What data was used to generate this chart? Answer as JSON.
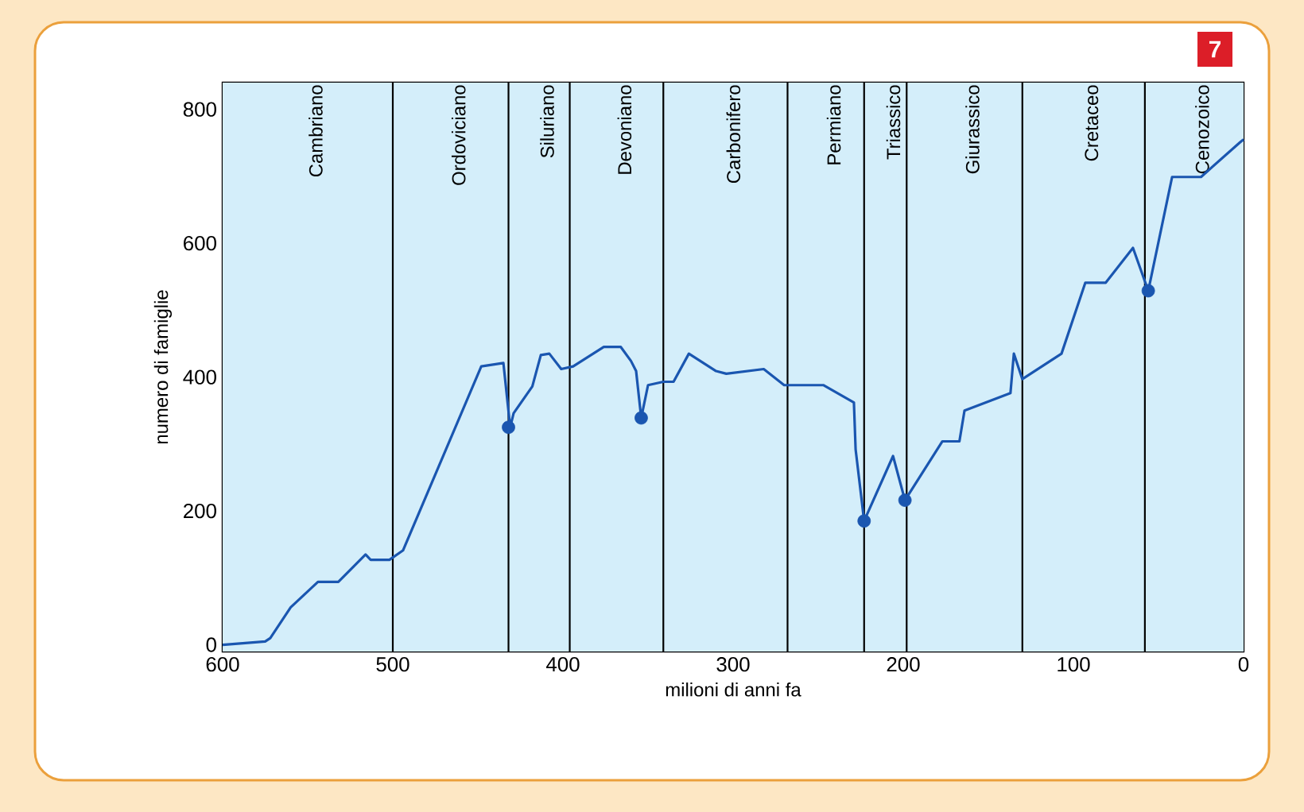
{
  "chart_data": {
    "type": "line",
    "xlabel": "milioni di anni fa",
    "ylabel": "numero di famiglie",
    "annotations": [
      "7"
    ],
    "xlim": [
      600,
      0
    ],
    "ylim": [
      -10,
      840
    ],
    "xticks": [
      600,
      500,
      400,
      300,
      200,
      100,
      0
    ],
    "yticks": [
      0,
      200,
      400,
      600,
      800
    ],
    "series": [
      {
        "color": "#1a56b0",
        "x": [
          600,
          575,
          572,
          560,
          544,
          532,
          516,
          513,
          502,
          494,
          448,
          435,
          431,
          429,
          418,
          413,
          408,
          401,
          394,
          376,
          366,
          360,
          357,
          354,
          350,
          341,
          335,
          326,
          310,
          304,
          282,
          270,
          247,
          229,
          228,
          223,
          206,
          199,
          177,
          167,
          164,
          137,
          135,
          130,
          107,
          93,
          81,
          65,
          56,
          42,
          25,
          2,
          0
        ],
        "values": [
          0,
          5,
          10,
          56,
          94,
          94,
          135,
          127,
          127,
          141,
          416,
          421,
          325,
          346,
          386,
          433,
          435,
          412,
          416,
          445,
          445,
          424,
          409,
          339,
          388,
          393,
          393,
          435,
          409,
          405,
          412,
          388,
          388,
          362,
          292,
          185,
          282,
          216,
          304,
          304,
          350,
          376,
          435,
          397,
          435,
          541,
          541,
          593,
          529,
          699,
          699,
          751,
          755
        ]
      },
      {
        "type": "scatter",
        "color": "#1a56b0",
        "marker": "circle",
        "x": [
          432,
          354,
          223,
          199,
          56
        ],
        "values": [
          325,
          339,
          185,
          216,
          529
        ]
      }
    ],
    "bands": [
      {
        "axis": "x",
        "from": 600,
        "to": 500,
        "label": "Cambriano",
        "color": "#d4eefa"
      },
      {
        "axis": "x",
        "from": 500,
        "to": 432,
        "label": "Ordoviciano",
        "color": "#d4eefa"
      },
      {
        "axis": "x",
        "from": 432,
        "to": 396,
        "label": "Siluriano",
        "color": "#d4eefa"
      },
      {
        "axis": "x",
        "from": 396,
        "to": 341,
        "label": "Devoniano",
        "color": "#d4eefa"
      },
      {
        "axis": "x",
        "from": 341,
        "to": 268,
        "label": "Carbonifero",
        "color": "#d4eefa"
      },
      {
        "axis": "x",
        "from": 268,
        "to": 223,
        "label": "Permiano",
        "color": "#d4eefa"
      },
      {
        "axis": "x",
        "from": 223,
        "to": 198,
        "label": "Triassico",
        "color": "#d4eefa"
      },
      {
        "axis": "x",
        "from": 198,
        "to": 130,
        "label": "Giurassico",
        "color": "#d4eefa"
      },
      {
        "axis": "x",
        "from": 130,
        "to": 58,
        "label": "Cretaceo",
        "color": "#d4eefa"
      },
      {
        "axis": "x",
        "from": 58,
        "to": 0,
        "label": "Cenozoico",
        "color": "#d4eefa"
      }
    ]
  }
}
